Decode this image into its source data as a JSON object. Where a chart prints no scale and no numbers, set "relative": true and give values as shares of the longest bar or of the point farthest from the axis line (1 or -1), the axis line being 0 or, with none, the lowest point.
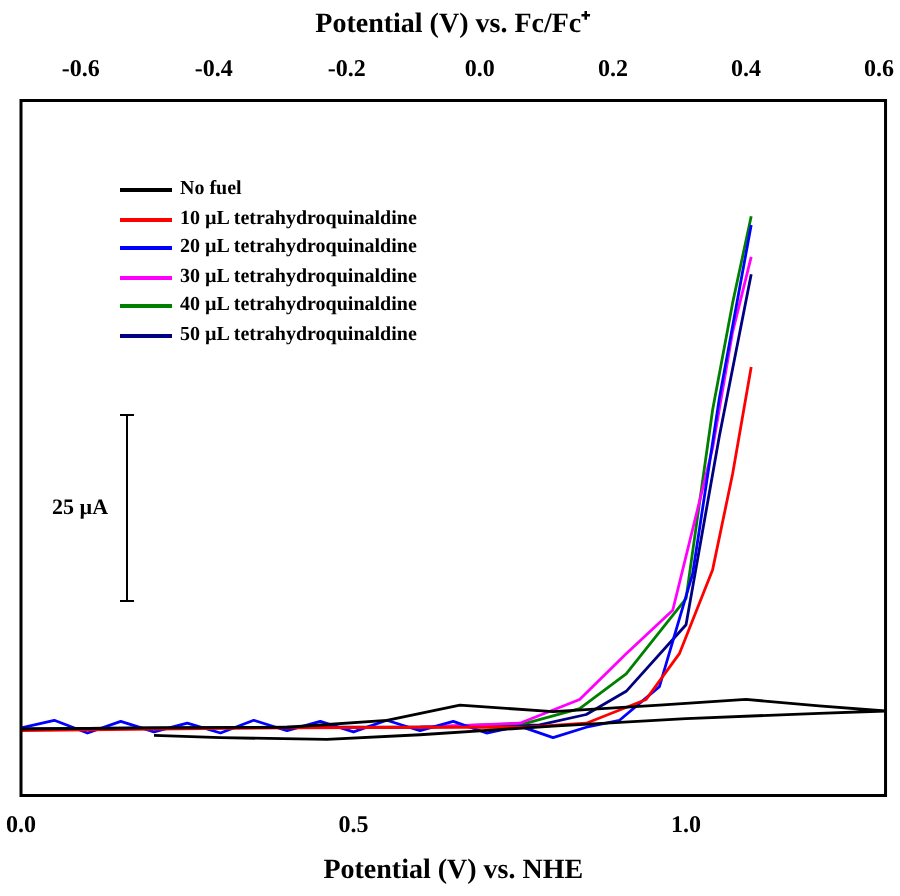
{
  "chart_data": {
    "type": "line",
    "relative": true,
    "xlabel": "Potential (V) vs. NHE",
    "x2label": "Potential (V) vs. Fc/Fc⁺",
    "xlim": [
      0,
      1.3
    ],
    "xticks": [
      {
        "value": 0,
        "label": "0.0"
      },
      0.5,
      {
        "value": 1,
        "label": "1.0"
      }
    ],
    "x2lim": [
      -0.69,
      0.61
    ],
    "x2ticks": [
      -0.6,
      -0.4,
      -0.2,
      {
        "value": 0,
        "label": "0.0"
      },
      0.2,
      0.4,
      0.6
    ],
    "legend": "top left",
    "grid": false,
    "marker": "none",
    "line_style": "solid",
    "annotations": [
      "25 µA"
    ],
    "series": [
      {
        "name": "No fuel",
        "color": "#000000",
        "x": [
          0.2,
          0.3,
          0.46,
          0.6,
          0.8,
          1.0,
          1.2,
          1.3,
          1.2,
          1.09,
          0.96,
          0.8,
          0.66,
          0.55,
          0.4,
          0.2,
          0.0
        ],
        "values": [
          0.104,
          0.1,
          0.097,
          0.105,
          0.12,
          0.133,
          0.142,
          0.146,
          0.155,
          0.166,
          0.156,
          0.145,
          0.156,
          0.13,
          0.118,
          0.117,
          0.115
        ]
      },
      {
        "name": "10 µL tetrahydroquinaldine",
        "color": "#ff0000",
        "x": [
          0.0,
          0.2,
          0.4,
          0.6,
          0.76,
          0.85,
          0.94,
          0.99,
          1.04,
          1.07,
          1.098
        ],
        "values": [
          0.112,
          0.115,
          0.117,
          0.118,
          0.118,
          0.125,
          0.166,
          0.245,
          0.39,
          0.555,
          0.74
        ]
      },
      {
        "name": "20 µL tetrahydroquinaldine",
        "color": "#0000ff",
        "x": [
          0.0,
          0.05,
          0.1,
          0.15,
          0.2,
          0.25,
          0.3,
          0.35,
          0.4,
          0.45,
          0.5,
          0.55,
          0.6,
          0.65,
          0.7,
          0.75,
          0.8,
          0.85,
          0.9,
          0.96,
          1.01,
          1.05,
          1.098
        ],
        "values": [
          0.117,
          0.13,
          0.108,
          0.128,
          0.11,
          0.125,
          0.108,
          0.13,
          0.112,
          0.128,
          0.11,
          0.13,
          0.112,
          0.128,
          0.108,
          0.12,
          0.1,
          0.118,
          0.13,
          0.188,
          0.383,
          0.685,
          0.985
        ]
      },
      {
        "name": "30 µL tetrahydroquinaldine",
        "color": "#ff00ff",
        "x": [
          0.6,
          0.75,
          0.84,
          0.91,
          0.98,
          1.04,
          1.07,
          1.098
        ],
        "values": [
          0.118,
          0.125,
          0.166,
          0.245,
          0.32,
          0.6,
          0.8,
          0.93
        ]
      },
      {
        "name": "40 µL tetrahydroquinaldine",
        "color": "#008000",
        "x": [
          0.6,
          0.76,
          0.84,
          0.91,
          1.0,
          1.04,
          1.07,
          1.098
        ],
        "values": [
          0.118,
          0.125,
          0.15,
          0.21,
          0.34,
          0.666,
          0.85,
          1.0
        ]
      },
      {
        "name": "50 µL tetrahydroquinaldine",
        "color": "#000080",
        "x": [
          0.0,
          0.2,
          0.4,
          0.6,
          0.78,
          0.85,
          0.91,
          1.0,
          1.05,
          1.098
        ],
        "values": [
          0.115,
          0.117,
          0.118,
          0.118,
          0.122,
          0.14,
          0.18,
          0.295,
          0.62,
          0.9
        ]
      }
    ]
  }
}
